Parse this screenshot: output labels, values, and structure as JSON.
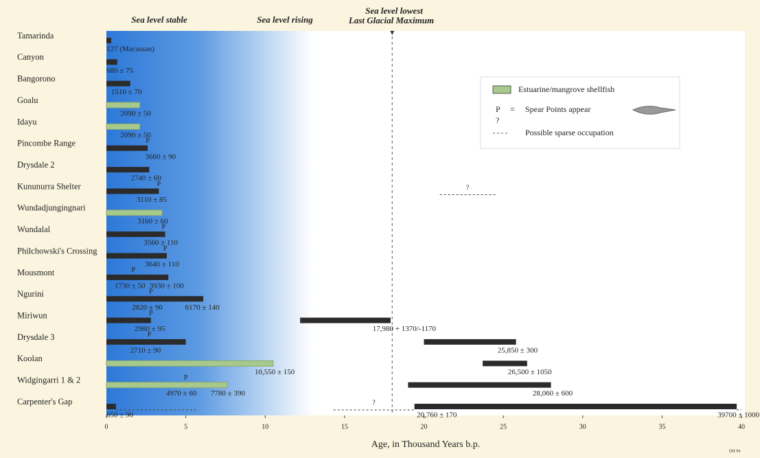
{
  "chart_data": {
    "type": "range-bar",
    "header": {
      "stable": "Sea level stable",
      "rising": "Sea level rising",
      "lowest": "Sea level lowest",
      "lgm": "Last Glacial Maximum"
    },
    "x_label": "Age, in Thousand Years b.p.",
    "xlim": [
      0,
      40
    ],
    "xticks": [
      0,
      5,
      10,
      15,
      20,
      25,
      30,
      35,
      40
    ],
    "lgm_line": 18,
    "colors": {
      "occupation": "#2b2b2b",
      "shellfish": "#a8c98c"
    },
    "legend": {
      "shellfish": "Estuarine/mangrove shellfish",
      "spear_symbol": "P",
      "equals": "=",
      "spear": "Spear Points appear",
      "sparse_symbol": "?",
      "sparse": "Possible sparse occupation"
    },
    "credit": "DH 94",
    "rows": [
      {
        "site": "Tamarinda",
        "bars": [
          {
            "start": 0,
            "end": 0.3,
            "kind": "occupation"
          }
        ],
        "dates": [
          {
            "value": 0.127,
            "label": "127 (Macassan)"
          }
        ]
      },
      {
        "site": "Canyon",
        "bars": [
          {
            "start": 0,
            "end": 0.68,
            "kind": "occupation"
          }
        ],
        "dates": [
          {
            "value": 0.68,
            "label": "680 ± 75"
          }
        ]
      },
      {
        "site": "Bangorono",
        "bars": [
          {
            "start": 0,
            "end": 1.5,
            "kind": "occupation"
          }
        ],
        "dates": [
          {
            "value": 1.51,
            "label": "1510 ± 70"
          }
        ]
      },
      {
        "site": "Goalu",
        "bars": [
          {
            "start": 0,
            "end": 2.1,
            "kind": "shellfish"
          }
        ],
        "dates": [
          {
            "value": 2.09,
            "label": "2090 ± 50"
          }
        ]
      },
      {
        "site": "Idayu",
        "bars": [
          {
            "start": 0,
            "end": 2.1,
            "kind": "shellfish"
          }
        ],
        "dates": [
          {
            "value": 2.09,
            "label": "2090 ± 50"
          }
        ]
      },
      {
        "site": "Pincombe Range",
        "bars": [
          {
            "start": 0,
            "end": 2.6,
            "kind": "occupation"
          }
        ],
        "dates": [
          {
            "value": 3.66,
            "label": "3660 ± 90"
          }
        ],
        "spear": 2.6
      },
      {
        "site": "Drysdale 2",
        "bars": [
          {
            "start": 0,
            "end": 2.7,
            "kind": "occupation"
          }
        ],
        "dates": [
          {
            "value": 2.74,
            "label": "2740 ± 60"
          }
        ]
      },
      {
        "site": "Kununurra Shelter",
        "bars": [
          {
            "start": 0,
            "end": 3.3,
            "kind": "occupation"
          }
        ],
        "dates": [
          {
            "value": 3.11,
            "label": "3110 ± 85"
          }
        ],
        "spear": 3.3,
        "sparse": [
          {
            "start": 21,
            "end": 24.5,
            "marked": true
          }
        ]
      },
      {
        "site": "Wundadjungingnari",
        "bars": [
          {
            "start": 0,
            "end": 3.5,
            "kind": "shellfish"
          }
        ],
        "dates": [
          {
            "value": 3.16,
            "label": "3160 ± 60"
          }
        ]
      },
      {
        "site": "Wundalal",
        "bars": [
          {
            "start": 0,
            "end": 3.7,
            "kind": "occupation"
          }
        ],
        "dates": [
          {
            "value": 3.56,
            "label": "3560 ± 110"
          }
        ],
        "spear": 3.6
      },
      {
        "site": "Philchowski's Crossing",
        "bars": [
          {
            "start": 0,
            "end": 3.8,
            "kind": "occupation"
          }
        ],
        "dates": [
          {
            "value": 3.64,
            "label": "3640 ± 110"
          }
        ],
        "spear": 3.7
      },
      {
        "site": "Mousmont",
        "bars": [
          {
            "start": 0,
            "end": 3.9,
            "kind": "occupation"
          }
        ],
        "dates": [
          {
            "value": 1.73,
            "label": "1730 ± 50"
          },
          {
            "value": 3.93,
            "label": "3930 ± 100"
          }
        ],
        "spear": 1.7
      },
      {
        "site": "Ngurini",
        "bars": [
          {
            "start": 0,
            "end": 6.1,
            "kind": "occupation"
          }
        ],
        "dates": [
          {
            "value": 2.82,
            "label": "2820 ± 90"
          },
          {
            "value": 6.17,
            "label": "6170 ± 140"
          }
        ],
        "spear": 2.8
      },
      {
        "site": "Miriwun",
        "bars": [
          {
            "start": 0,
            "end": 2.8,
            "kind": "occupation"
          },
          {
            "start": 12.2,
            "end": 17.9,
            "kind": "occupation"
          }
        ],
        "dates": [
          {
            "value": 2.98,
            "label": "2980 ± 95"
          },
          {
            "value": 17.98,
            "label": "17,980 + 1370/-1170"
          }
        ],
        "spear": 2.8
      },
      {
        "site": "Drysdale 3",
        "bars": [
          {
            "start": 0,
            "end": 5,
            "kind": "occupation"
          },
          {
            "start": 20,
            "end": 25.8,
            "kind": "occupation"
          }
        ],
        "dates": [
          {
            "value": 2.71,
            "label": "2710 ± 90"
          },
          {
            "value": 25.85,
            "label": "25,850 ± 300"
          }
        ],
        "spear": 2.7
      },
      {
        "site": "Koolan",
        "bars": [
          {
            "start": 0,
            "end": 10.5,
            "kind": "shellfish"
          },
          {
            "start": 23.7,
            "end": 26.5,
            "kind": "occupation"
          }
        ],
        "dates": [
          {
            "value": 10.55,
            "label": "10,550 ± 150"
          },
          {
            "value": 26.5,
            "label": "26,500 ± 1050"
          }
        ]
      },
      {
        "site": "Widgingarri 1 & 2",
        "bars": [
          {
            "start": 0,
            "end": 7.6,
            "kind": "shellfish"
          },
          {
            "start": 19,
            "end": 28,
            "kind": "occupation"
          }
        ],
        "dates": [
          {
            "value": 4.97,
            "label": "4970 ± 60"
          },
          {
            "value": 7.78,
            "label": "7780 ± 390"
          },
          {
            "value": 28.06,
            "label": "28,060 ± 600"
          }
        ],
        "spear": 5
      },
      {
        "site": "Carpenter's Gap",
        "bars": [
          {
            "start": 0,
            "end": 0.6,
            "kind": "occupation"
          },
          {
            "start": 19.4,
            "end": 39.7,
            "kind": "occupation"
          }
        ],
        "dates": [
          {
            "value": 0.65,
            "label": "650 ± 90"
          },
          {
            "value": 20.76,
            "label": "20,760 ± 170"
          },
          {
            "value": 39.7,
            "label": "39700 ± 1000"
          }
        ],
        "sparse": [
          {
            "start": 0.6,
            "end": 5.8,
            "marked": false
          },
          {
            "start": 14.3,
            "end": 19.4,
            "marked": true
          },
          {
            "start": 39.7,
            "end": 40,
            "marked": false
          }
        ]
      }
    ]
  }
}
